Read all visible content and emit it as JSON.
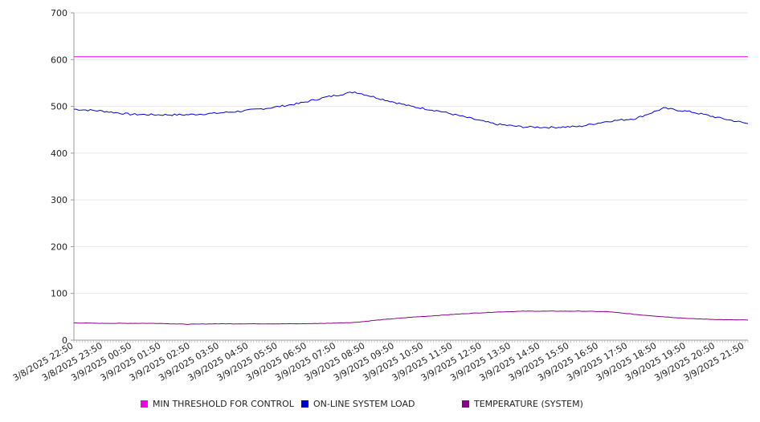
{
  "chart_data": {
    "type": "line",
    "title": "",
    "xlabel": "",
    "ylabel": "",
    "ylim": [
      0,
      700
    ],
    "yticks": [
      0,
      100,
      200,
      300,
      400,
      500,
      600,
      700
    ],
    "x_tick_labels": [
      "3/8/2025 22:50",
      "3/8/2025 23:50",
      "3/9/2025 00:50",
      "3/9/2025 01:50",
      "3/9/2025 02:50",
      "3/9/2025 03:50",
      "3/9/2025 04:50",
      "3/9/2025 05:50",
      "3/9/2025 06:50",
      "3/9/2025 07:50",
      "3/9/2025 08:50",
      "3/9/2025 09:50",
      "3/9/2025 10:50",
      "3/9/2025 11:50",
      "3/9/2025 12:50",
      "3/9/2025 13:50",
      "3/9/2025 14:50",
      "3/9/2025 15:50",
      "3/9/2025 16:50",
      "3/9/2025 17:50",
      "3/9/2025 18:50",
      "3/9/2025 19:50",
      "3/9/2025 20:50",
      "3/9/2025 21:50"
    ],
    "grid": true,
    "legend_position": "bottom",
    "series": [
      {
        "name": "MIN THRESHOLD FOR CONTROL",
        "color": "#ee00ee",
        "values": [
          606,
          606,
          606,
          606,
          606,
          606,
          606,
          606,
          606,
          606,
          606,
          606,
          606,
          606,
          606,
          606,
          606,
          606,
          606,
          606,
          606,
          606,
          606,
          606,
          606
        ]
      },
      {
        "name": "ON-LINE SYSTEM LOAD",
        "color": "#0000dd",
        "values": [
          494,
          490,
          483,
          482,
          482,
          485,
          490,
          497,
          506,
          520,
          531,
          515,
          500,
          490,
          476,
          462,
          456,
          455,
          457,
          468,
          474,
          496,
          488,
          475,
          463
        ]
      },
      {
        "name": "TEMPERATURE (SYSTEM)",
        "color": "#880088",
        "values": [
          37,
          36,
          36,
          36,
          34,
          35,
          35,
          35,
          35,
          36,
          38,
          44,
          49,
          53,
          57,
          60,
          62,
          62,
          62,
          61,
          55,
          50,
          46,
          44,
          43
        ]
      }
    ]
  }
}
